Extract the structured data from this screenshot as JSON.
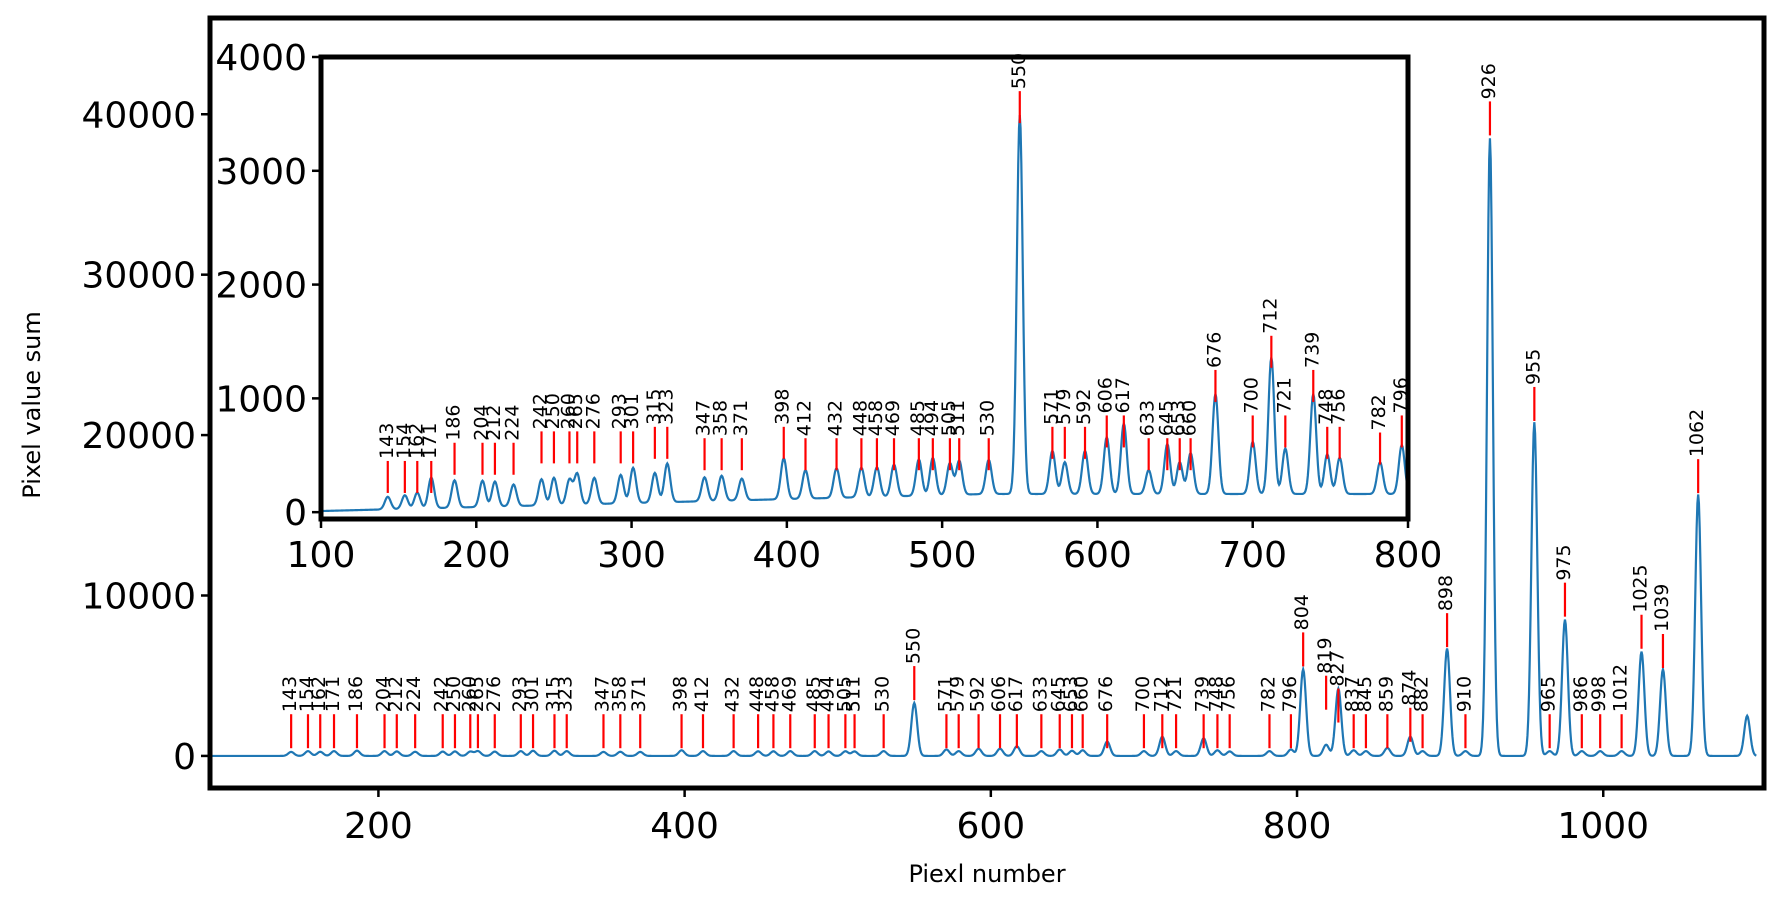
{
  "chart_data": [
    {
      "type": "line",
      "role": "main",
      "title": "",
      "xlabel": "Piexl number",
      "ylabel": "Pixel value sum",
      "xlim": [
        90,
        1105
      ],
      "ylim": [
        -2000,
        46000
      ],
      "xticks": [
        200,
        400,
        600,
        800,
        1000
      ],
      "xtick_labels": [
        "200",
        "400",
        "600",
        "800",
        "1000"
      ],
      "yticks": [
        0,
        10000,
        20000,
        30000,
        40000
      ],
      "ytick_labels": [
        "0",
        "10000",
        "20000",
        "30000",
        "40000"
      ],
      "grid": false,
      "line_color": "#1f77b4",
      "marker_color": "#ff0000",
      "peak_labels": [
        "143",
        "154",
        "162",
        "171",
        "186",
        "204",
        "212",
        "224",
        "242",
        "250",
        "260",
        "265",
        "276",
        "293",
        "301",
        "315",
        "323",
        "347",
        "358",
        "371",
        "398",
        "412",
        "432",
        "448",
        "458",
        "469",
        "485",
        "494",
        "505",
        "511",
        "530",
        "550",
        "571",
        "579",
        "592",
        "606",
        "617",
        "633",
        "645",
        "653",
        "660",
        "676",
        "700",
        "712",
        "721",
        "739",
        "748",
        "756",
        "782",
        "796",
        "804",
        "819",
        "827",
        "837",
        "845",
        "859",
        "874",
        "882",
        "898",
        "910",
        "926",
        "955",
        "965",
        "975",
        "986",
        "998",
        "1012",
        "1025",
        "1039",
        "1062"
      ],
      "peak_x": [
        143,
        154,
        162,
        171,
        186,
        204,
        212,
        224,
        242,
        250,
        260,
        265,
        276,
        293,
        301,
        315,
        323,
        347,
        358,
        371,
        398,
        412,
        432,
        448,
        458,
        469,
        485,
        494,
        505,
        511,
        530,
        550,
        571,
        579,
        592,
        606,
        617,
        633,
        645,
        653,
        660,
        676,
        700,
        712,
        721,
        739,
        748,
        756,
        782,
        796,
        804,
        819,
        827,
        837,
        845,
        859,
        874,
        882,
        898,
        910,
        926,
        955,
        965,
        975,
        986,
        998,
        1012,
        1025,
        1039,
        1062
      ],
      "peak_y": [
        250,
        300,
        260,
        300,
        330,
        300,
        280,
        260,
        270,
        280,
        270,
        300,
        270,
        300,
        320,
        320,
        300,
        250,
        260,
        250,
        350,
        300,
        300,
        290,
        290,
        300,
        300,
        280,
        290,
        280,
        300,
        3300,
        400,
        300,
        450,
        450,
        600,
        300,
        400,
        320,
        350,
        900,
        300,
        1200,
        300,
        1100,
        350,
        280,
        300,
        400,
        5400,
        700,
        4200,
        350,
        300,
        500,
        1200,
        300,
        6700,
        300,
        38500,
        20800,
        300,
        8500,
        300,
        300,
        300,
        6500,
        5400,
        16300
      ],
      "marker_y": [
        2600,
        2600,
        2600,
        2600,
        2600,
        2600,
        2600,
        2600,
        2600,
        2600,
        2600,
        2600,
        2600,
        2600,
        2600,
        2600,
        2600,
        2600,
        2600,
        2600,
        2600,
        2600,
        2600,
        2600,
        2600,
        2600,
        2600,
        2600,
        2600,
        2600,
        2600,
        5600,
        2600,
        2600,
        2600,
        2600,
        2600,
        2600,
        2600,
        2600,
        2600,
        2600,
        2600,
        2600,
        2600,
        2600,
        2600,
        2600,
        2600,
        2600,
        7700,
        5000,
        4200,
        2600,
        2600,
        2600,
        3000,
        2600,
        8900,
        2600,
        40800,
        23000,
        2600,
        10800,
        2600,
        2600,
        2600,
        8800,
        7600,
        18500
      ],
      "tail_peak_x": 1094,
      "tail_peak_y": 2500
    },
    {
      "type": "line",
      "role": "inset",
      "title": "",
      "xlabel": "",
      "ylabel": "",
      "xlim": [
        100,
        800
      ],
      "ylim": [
        -60,
        4000
      ],
      "xticks": [
        100,
        200,
        300,
        400,
        500,
        600,
        700,
        800
      ],
      "xtick_labels": [
        "100",
        "200",
        "300",
        "400",
        "500",
        "600",
        "700",
        "800"
      ],
      "yticks": [
        0,
        1000,
        2000,
        3000,
        4000
      ],
      "ytick_labels": [
        "0",
        "1000",
        "2000",
        "3000",
        "4000"
      ],
      "grid": false,
      "line_color": "#1f77b4",
      "marker_color": "#ff0000",
      "peak_labels": [
        "143",
        "154",
        "162",
        "171",
        "186",
        "204",
        "212",
        "224",
        "242",
        "250",
        "260",
        "265",
        "276",
        "293",
        "301",
        "315",
        "323",
        "347",
        "358",
        "371",
        "398",
        "412",
        "432",
        "448",
        "458",
        "469",
        "485",
        "494",
        "505",
        "511",
        "530",
        "550",
        "571",
        "579",
        "592",
        "606",
        "617",
        "633",
        "645",
        "653",
        "660",
        "676",
        "700",
        "712",
        "721",
        "739",
        "748",
        "756",
        "782",
        "796"
      ],
      "peak_x": [
        143,
        154,
        162,
        171,
        186,
        204,
        212,
        224,
        242,
        250,
        260,
        265,
        276,
        293,
        301,
        315,
        323,
        347,
        358,
        371,
        398,
        412,
        432,
        448,
        458,
        469,
        485,
        494,
        505,
        511,
        530,
        550,
        571,
        579,
        592,
        606,
        617,
        633,
        645,
        653,
        660,
        676,
        700,
        712,
        721,
        739,
        748,
        756,
        782,
        796
      ],
      "peak_y": [
        110,
        120,
        140,
        270,
        240,
        230,
        220,
        190,
        230,
        240,
        220,
        270,
        230,
        250,
        310,
        260,
        340,
        210,
        220,
        190,
        360,
        250,
        260,
        260,
        260,
        280,
        320,
        330,
        280,
        300,
        300,
        3330,
        380,
        280,
        380,
        500,
        620,
        210,
        440,
        280,
        360,
        880,
        460,
        1200,
        400,
        880,
        350,
        320,
        280,
        430
      ],
      "marker_y": [
        450,
        450,
        450,
        450,
        610,
        610,
        610,
        610,
        710,
        710,
        710,
        710,
        710,
        710,
        710,
        750,
        750,
        650,
        650,
        650,
        750,
        650,
        650,
        650,
        650,
        650,
        650,
        650,
        650,
        650,
        650,
        3700,
        750,
        750,
        750,
        850,
        850,
        650,
        650,
        650,
        650,
        1250,
        850,
        1550,
        850,
        1250,
        750,
        750,
        700,
        850
      ]
    }
  ]
}
